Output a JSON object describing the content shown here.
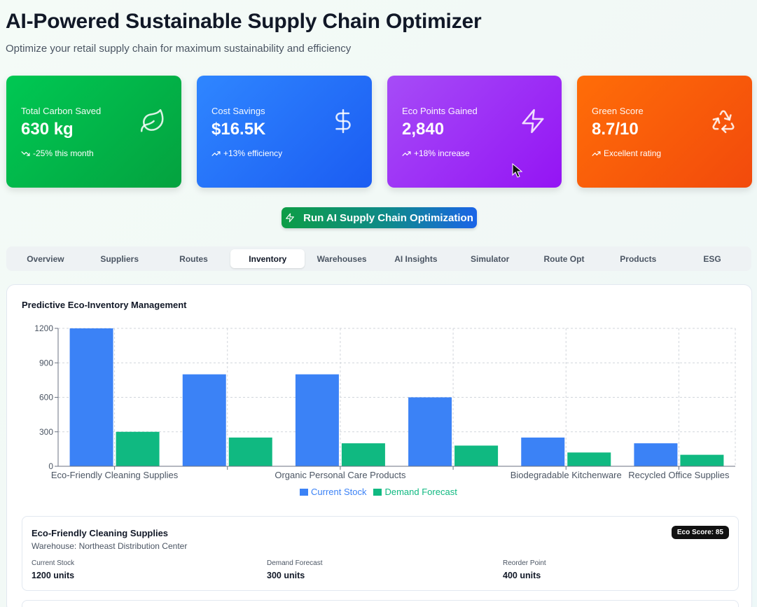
{
  "header": {
    "title": "AI-Powered Sustainable Supply Chain Optimizer",
    "subtitle": "Optimize your retail supply chain for maximum sustainability and efficiency"
  },
  "stats": [
    {
      "label": "Total Carbon Saved",
      "value": "630 kg",
      "trend": "-25% this month",
      "icon": "leaf-icon",
      "trend_icon": "trending-down-icon"
    },
    {
      "label": "Cost Savings",
      "value": "$16.5K",
      "trend": "+13% efficiency",
      "icon": "dollar-icon",
      "trend_icon": "trending-up-icon"
    },
    {
      "label": "Eco Points Gained",
      "value": "2,840",
      "trend": "+18% increase",
      "icon": "lightning-icon",
      "trend_icon": "trending-up-icon"
    },
    {
      "label": "Green Score",
      "value": "8.7/10",
      "trend": "Excellent rating",
      "icon": "recycle-icon",
      "trend_icon": "trending-up-icon"
    }
  ],
  "run_button": {
    "label": "Run AI Supply Chain Optimization",
    "icon": "lightning-icon"
  },
  "tabs": {
    "items": [
      "Overview",
      "Suppliers",
      "Routes",
      "Inventory",
      "Warehouses",
      "AI Insights",
      "Simulator",
      "Route Opt",
      "Products",
      "ESG"
    ],
    "active": "Inventory"
  },
  "panel": {
    "title": "Predictive Eco-Inventory Management"
  },
  "colors": {
    "current_stock": "#3b82f6",
    "demand_forecast": "#10b981"
  },
  "chart_data": {
    "type": "bar",
    "title": "",
    "categories": [
      "Eco-Friendly Cleaning Supplies",
      "",
      "Organic Personal Care Products",
      "",
      "Biodegradable Kitchenware",
      "Recycled Office Supplies"
    ],
    "series": [
      {
        "name": "Current Stock",
        "values": [
          1200,
          800,
          800,
          600,
          250,
          200
        ]
      },
      {
        "name": "Demand Forecast",
        "values": [
          300,
          250,
          200,
          180,
          120,
          100
        ]
      }
    ],
    "yticks": [
      "1200",
      "900",
      "600",
      "300",
      "0"
    ],
    "ylim": [
      0,
      1200
    ],
    "grid": true,
    "legend": "bottom"
  },
  "product": {
    "name": "Eco-Friendly Cleaning Supplies",
    "warehouse": "Warehouse: Northeast Distribution Center",
    "badge": "Eco Score: 85",
    "stats": [
      {
        "label": "Current Stock",
        "value": "1200 units"
      },
      {
        "label": "Demand Forecast",
        "value": "300 units"
      },
      {
        "label": "Reorder Point",
        "value": "400 units"
      }
    ]
  }
}
